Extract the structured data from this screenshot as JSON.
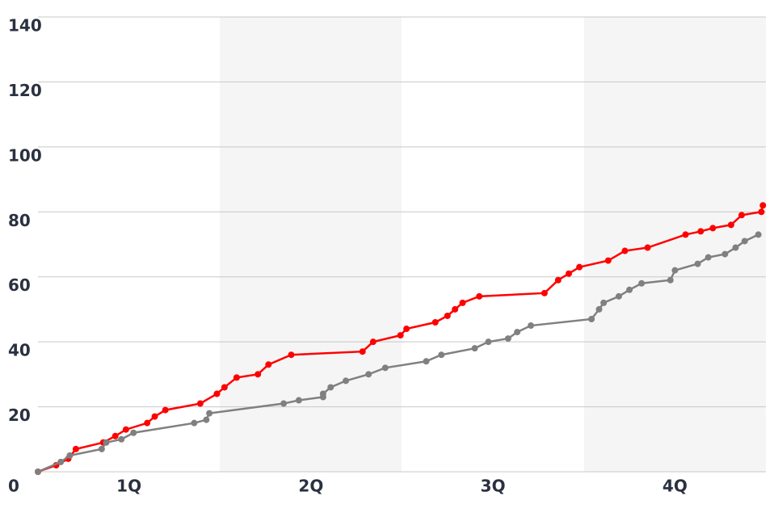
{
  "chart_data": {
    "type": "line",
    "xlim": [
      0,
      48
    ],
    "ylim": [
      0,
      140
    ],
    "xticks": [
      {
        "value": 6,
        "label": "1Q"
      },
      {
        "value": 18,
        "label": "2Q"
      },
      {
        "value": 30,
        "label": "3Q"
      },
      {
        "value": 42,
        "label": "4Q"
      }
    ],
    "yticks": [
      0,
      20,
      40,
      60,
      80,
      100,
      120,
      140
    ],
    "grid": true,
    "series": [
      {
        "color": "#ff0000",
        "x": [
          0,
          1.2,
          2.0,
          2.5,
          4.3,
          5.1,
          5.8,
          7.2,
          7.7,
          8.4,
          10.7,
          11.8,
          12.3,
          13.1,
          14.5,
          15.2,
          16.7,
          21.4,
          22.1,
          23.9,
          24.3,
          26.2,
          27.0,
          27.5,
          28.0,
          29.1,
          33.4,
          34.3,
          35.0,
          35.7,
          37.6,
          38.7,
          40.2,
          42.7,
          43.7,
          44.5,
          45.7,
          46.4,
          47.7,
          47.8
        ],
        "values": [
          0,
          2,
          4,
          7,
          9,
          11,
          13,
          15,
          17,
          19,
          21,
          24,
          26,
          29,
          30,
          33,
          36,
          37,
          40,
          42,
          44,
          46,
          48,
          50,
          52,
          54,
          55,
          59,
          61,
          63,
          65,
          68,
          69,
          73,
          74,
          75,
          76,
          79,
          80,
          82
        ]
      },
      {
        "color": "#808080",
        "x": [
          0,
          1.5,
          2.1,
          4.2,
          4.5,
          5.5,
          6.3,
          10.3,
          11.1,
          11.3,
          16.2,
          17.2,
          18.8,
          18.8,
          19.3,
          20.3,
          21.8,
          22.9,
          25.6,
          26.6,
          28.8,
          29.7,
          31.0,
          31.6,
          32.5,
          36.5,
          37.0,
          37.3,
          38.3,
          39.0,
          39.8,
          41.7,
          42.0,
          43.5,
          44.2,
          45.3,
          46.0,
          46.6,
          47.5
        ],
        "values": [
          0,
          3,
          5,
          7,
          9,
          10,
          12,
          15,
          16,
          18,
          21,
          22,
          23,
          24,
          26,
          28,
          30,
          32,
          34,
          36,
          38,
          40,
          41,
          43,
          45,
          47,
          50,
          52,
          54,
          56,
          58,
          59,
          62,
          64,
          66,
          67,
          69,
          71,
          73
        ]
      }
    ]
  }
}
